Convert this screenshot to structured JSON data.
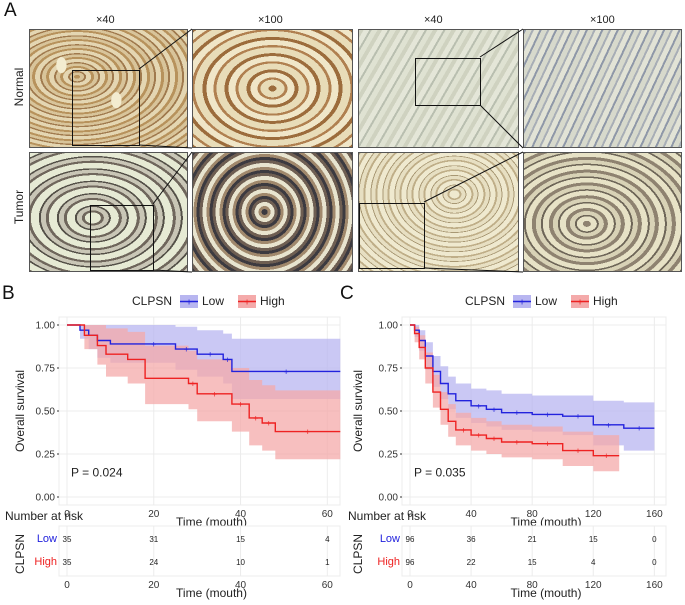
{
  "panels": {
    "a_label": "A",
    "b_label": "B",
    "c_label": "C"
  },
  "histology": {
    "mag_low": "×40",
    "mag_high": "×100",
    "row_normal": "Normal",
    "row_tumor": "Tumor"
  },
  "colors": {
    "low": "#2222dd",
    "high": "#ee2222",
    "low_fill": "#b8b6f0",
    "high_fill": "#f4aaaa"
  },
  "chart_data": [
    {
      "type": "line",
      "id": "B",
      "legend_title": "CLPSN",
      "legend": [
        "Low",
        "High"
      ],
      "ylabel": "Overall survival",
      "xlabel": "Time (mouth)",
      "xlim": [
        0,
        62
      ],
      "ylim": [
        0,
        1.0
      ],
      "xticks": [
        0,
        20,
        40,
        60
      ],
      "yticks": [
        "0.00",
        "0.25",
        "0.50",
        "0.75",
        "1.00"
      ],
      "pvalue": "P = 0.024",
      "series": [
        {
          "name": "Low",
          "x": [
            0,
            1,
            3,
            5,
            7,
            10,
            15,
            25,
            30,
            36,
            38,
            63
          ],
          "y": [
            1.0,
            1.0,
            0.97,
            0.94,
            0.91,
            0.89,
            0.89,
            0.86,
            0.83,
            0.8,
            0.73,
            0.73
          ],
          "lower": [
            1.0,
            1.0,
            0.92,
            0.86,
            0.81,
            0.78,
            0.78,
            0.74,
            0.7,
            0.66,
            0.57,
            0.57
          ],
          "upper": [
            1.0,
            1.0,
            1.0,
            1.0,
            1.0,
            1.0,
            1.0,
            0.99,
            0.97,
            0.95,
            0.92,
            0.92
          ]
        },
        {
          "name": "High",
          "x": [
            0,
            1,
            4,
            7,
            9,
            14,
            18,
            28,
            30,
            38,
            42,
            45,
            48,
            63
          ],
          "y": [
            1.0,
            1.0,
            0.94,
            0.88,
            0.83,
            0.8,
            0.69,
            0.66,
            0.6,
            0.54,
            0.46,
            0.43,
            0.38,
            0.38
          ],
          "lower": [
            1.0,
            1.0,
            0.86,
            0.77,
            0.7,
            0.66,
            0.54,
            0.51,
            0.44,
            0.38,
            0.3,
            0.27,
            0.22,
            0.22
          ],
          "upper": [
            1.0,
            1.0,
            1.0,
            1.0,
            0.98,
            0.96,
            0.88,
            0.85,
            0.8,
            0.75,
            0.68,
            0.65,
            0.62,
            0.62
          ]
        }
      ],
      "risk_table": {
        "title": "Number at risk",
        "ylabel": "CLPSN",
        "times": [
          0,
          20,
          40,
          60
        ],
        "rows": [
          {
            "label": "Low",
            "values": [
              "35",
              "31",
              "15",
              "4"
            ]
          },
          {
            "label": "High",
            "values": [
              "35",
              "24",
              "10",
              "1"
            ]
          }
        ]
      }
    },
    {
      "type": "line",
      "id": "C",
      "legend_title": "CLPSN",
      "legend": [
        "Low",
        "High"
      ],
      "ylabel": "Overall survival",
      "xlabel": "Time (mouth)",
      "xlim": [
        0,
        165
      ],
      "ylim": [
        0,
        1.0
      ],
      "xticks": [
        0,
        40,
        80,
        120,
        160
      ],
      "yticks": [
        "0.00",
        "0.25",
        "0.50",
        "0.75",
        "1.00"
      ],
      "pvalue": "P = 0.035",
      "series": [
        {
          "name": "Low",
          "x": [
            0,
            3,
            6,
            10,
            15,
            20,
            25,
            30,
            40,
            50,
            60,
            80,
            100,
            120,
            140,
            160
          ],
          "y": [
            1.0,
            0.97,
            0.91,
            0.82,
            0.73,
            0.66,
            0.6,
            0.56,
            0.53,
            0.51,
            0.49,
            0.48,
            0.47,
            0.42,
            0.4,
            0.4
          ],
          "lower": [
            1.0,
            0.93,
            0.85,
            0.74,
            0.64,
            0.57,
            0.51,
            0.46,
            0.43,
            0.41,
            0.39,
            0.38,
            0.36,
            0.3,
            0.27,
            0.27
          ],
          "upper": [
            1.0,
            1.0,
            0.97,
            0.9,
            0.82,
            0.76,
            0.7,
            0.66,
            0.63,
            0.62,
            0.6,
            0.59,
            0.59,
            0.56,
            0.55,
            0.55
          ]
        },
        {
          "name": "High",
          "x": [
            0,
            3,
            6,
            10,
            15,
            20,
            25,
            30,
            40,
            50,
            60,
            80,
            100,
            120,
            137
          ],
          "y": [
            1.0,
            0.95,
            0.87,
            0.75,
            0.61,
            0.51,
            0.44,
            0.39,
            0.36,
            0.34,
            0.32,
            0.31,
            0.27,
            0.24,
            0.24
          ],
          "lower": [
            1.0,
            0.9,
            0.8,
            0.66,
            0.52,
            0.42,
            0.35,
            0.3,
            0.27,
            0.25,
            0.23,
            0.22,
            0.18,
            0.15,
            0.15
          ],
          "upper": [
            1.0,
            0.99,
            0.94,
            0.84,
            0.71,
            0.61,
            0.54,
            0.49,
            0.46,
            0.44,
            0.42,
            0.41,
            0.38,
            0.36,
            0.36
          ]
        }
      ],
      "risk_table": {
        "title": "Number at risk",
        "ylabel": "CLPSN",
        "times": [
          0,
          40,
          80,
          120,
          160
        ],
        "rows": [
          {
            "label": "Low",
            "values": [
              "96",
              "36",
              "21",
              "15",
              "0"
            ]
          },
          {
            "label": "High",
            "values": [
              "96",
              "22",
              "15",
              "4",
              "0"
            ]
          }
        ]
      }
    }
  ]
}
